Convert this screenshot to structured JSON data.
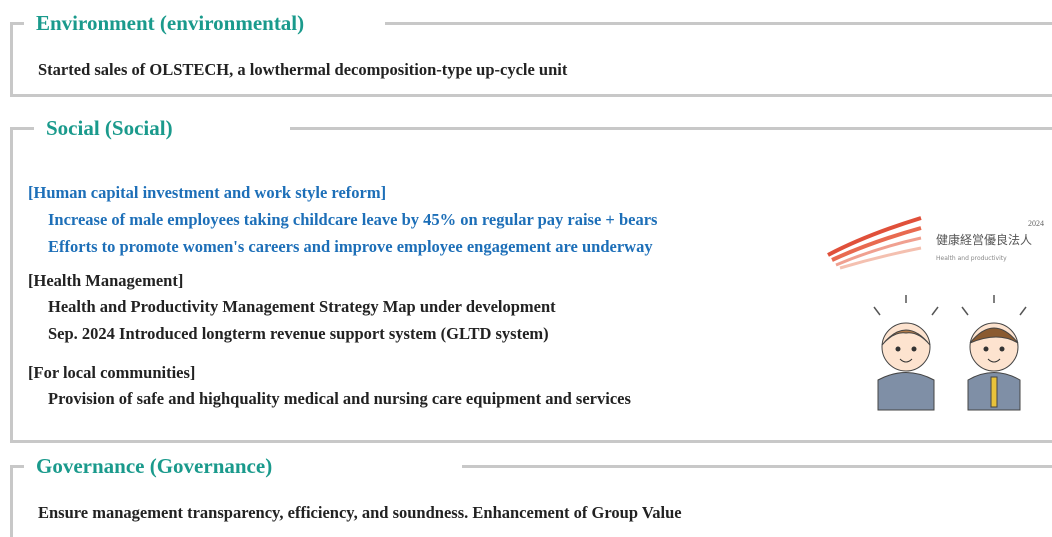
{
  "sections": [
    {
      "title": "Environment (environmental)",
      "items": [
        "Started sales of OLSTECH, a lowthermal decomposition-type up-cycle unit"
      ]
    },
    {
      "title": "Social (Social)",
      "groups": [
        {
          "heading": "[Human capital investment and work style reform]",
          "items": [
            "Increase of male employees taking childcare leave by 45% on regular pay raise + bears",
            "Efforts to promote women's careers and improve employee engagement are underway"
          ]
        },
        {
          "heading": "[Health Management]",
          "items": [
            "Health and Productivity Management Strategy Map under development",
            "Sep. 2024 Introduced longterm revenue support system (GLTD system)"
          ]
        },
        {
          "heading": "[For local communities]",
          "items": [
            "Provision of safe and highquality medical and nursing care equipment and services"
          ]
        }
      ]
    },
    {
      "title": "Governance (Governance)",
      "items": [
        "Ensure management transparency, efficiency, and soundness. Enhancement of Group Value"
      ]
    }
  ],
  "logo": {
    "year": "2024",
    "title": "健康経営優良法人",
    "subtitle": "Health and productivity"
  }
}
